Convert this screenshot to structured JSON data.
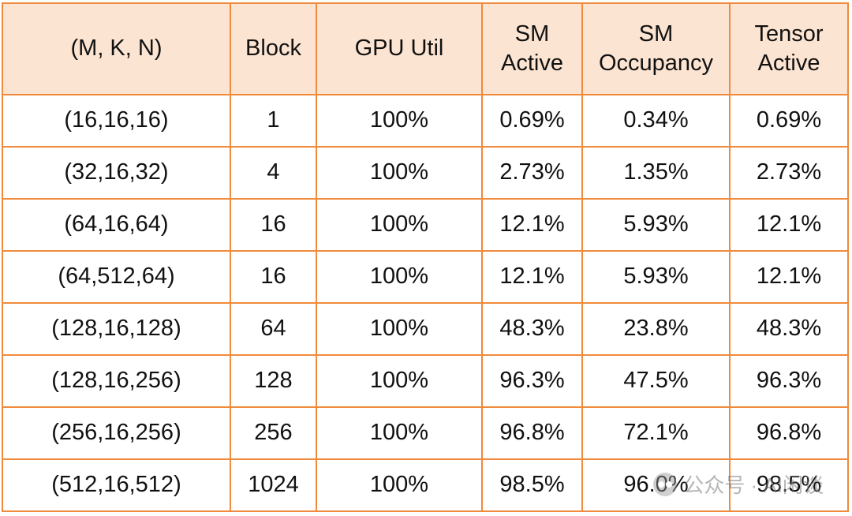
{
  "table": {
    "headers": [
      [
        "(M, K, N)"
      ],
      [
        "Block"
      ],
      [
        "GPU Util"
      ],
      [
        "SM",
        "Active"
      ],
      [
        "SM",
        "Occupancy"
      ],
      [
        "Tensor",
        "Active"
      ]
    ],
    "rows": [
      [
        "(16,16,16)",
        "1",
        "100%",
        "0.69%",
        "0.34%",
        "0.69%"
      ],
      [
        "(32,16,32)",
        "4",
        "100%",
        "2.73%",
        "1.35%",
        "2.73%"
      ],
      [
        "(64,16,64)",
        "16",
        "100%",
        "12.1%",
        "5.93%",
        "12.1%"
      ],
      [
        "(64,512,64)",
        "16",
        "100%",
        "12.1%",
        "5.93%",
        "12.1%"
      ],
      [
        "(128,16,128)",
        "64",
        "100%",
        "48.3%",
        "23.8%",
        "48.3%"
      ],
      [
        "(128,16,256)",
        "128",
        "100%",
        "96.3%",
        "47.5%",
        "96.3%"
      ],
      [
        "(256,16,256)",
        "256",
        "100%",
        "96.8%",
        "72.1%",
        "96.8%"
      ],
      [
        "(512,16,512)",
        "1024",
        "100%",
        "98.5%",
        "96.0%",
        "98.5%"
      ]
    ]
  },
  "colors": {
    "border": "#f08a3c",
    "header_bg": "#fce4d2",
    "text": "#111111"
  },
  "watermark": {
    "text": "公众号 · AI闲谈",
    "icon": "wechat-icon"
  }
}
